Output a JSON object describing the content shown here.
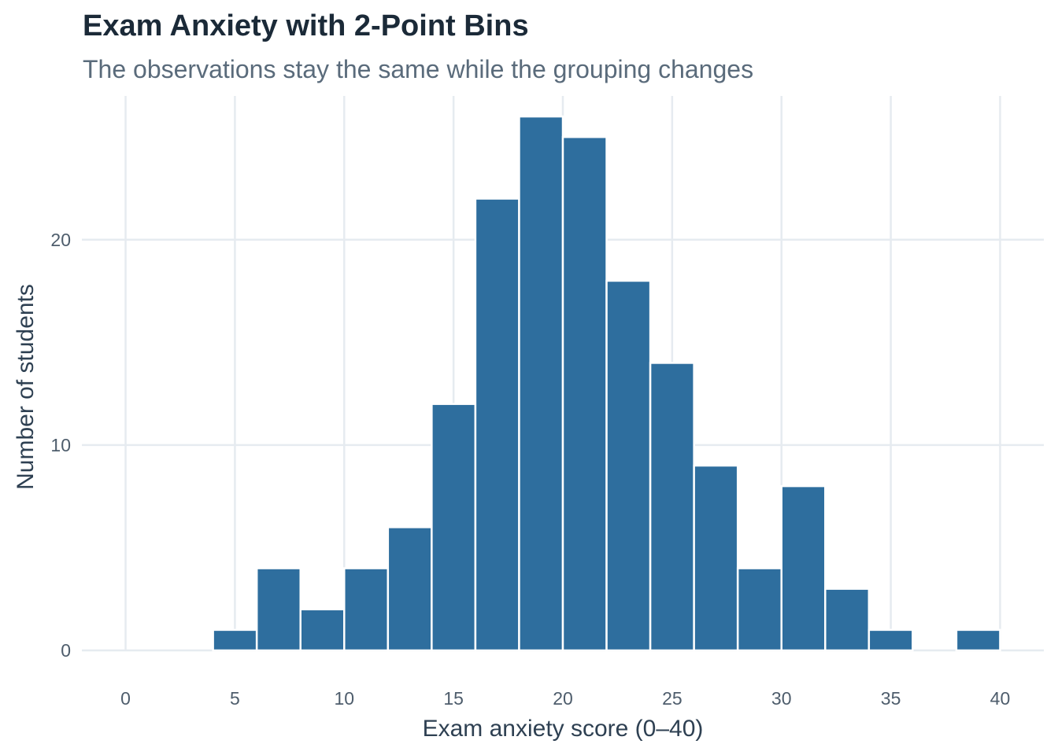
{
  "chart_data": {
    "type": "bar",
    "title": "Exam Anxiety with 2-Point Bins",
    "subtitle": "The observations stay the same while the grouping changes",
    "xlabel": "Exam anxiety score (0–40)",
    "ylabel": "Number of students",
    "bin_width": 2,
    "bins": [
      {
        "start": 4,
        "end": 6,
        "count": 1
      },
      {
        "start": 6,
        "end": 8,
        "count": 4
      },
      {
        "start": 8,
        "end": 10,
        "count": 2
      },
      {
        "start": 10,
        "end": 12,
        "count": 4
      },
      {
        "start": 12,
        "end": 14,
        "count": 6
      },
      {
        "start": 14,
        "end": 16,
        "count": 12
      },
      {
        "start": 16,
        "end": 18,
        "count": 22
      },
      {
        "start": 18,
        "end": 20,
        "count": 26
      },
      {
        "start": 20,
        "end": 22,
        "count": 25
      },
      {
        "start": 22,
        "end": 24,
        "count": 18
      },
      {
        "start": 24,
        "end": 26,
        "count": 14
      },
      {
        "start": 26,
        "end": 28,
        "count": 9
      },
      {
        "start": 28,
        "end": 30,
        "count": 4
      },
      {
        "start": 30,
        "end": 32,
        "count": 8
      },
      {
        "start": 32,
        "end": 34,
        "count": 3
      },
      {
        "start": 34,
        "end": 36,
        "count": 1
      },
      {
        "start": 36,
        "end": 38,
        "count": 0
      },
      {
        "start": 38,
        "end": 40,
        "count": 1
      }
    ],
    "x_ticks": [
      "0",
      "5",
      "10",
      "15",
      "20",
      "25",
      "30",
      "35",
      "40"
    ],
    "y_ticks": [
      "0",
      "10",
      "20"
    ],
    "xlim": [
      -2,
      42
    ],
    "ylim": [
      0,
      27
    ],
    "grid": true,
    "bar_color": "#2e6e9e",
    "grid_color": "#e6ebf0"
  }
}
